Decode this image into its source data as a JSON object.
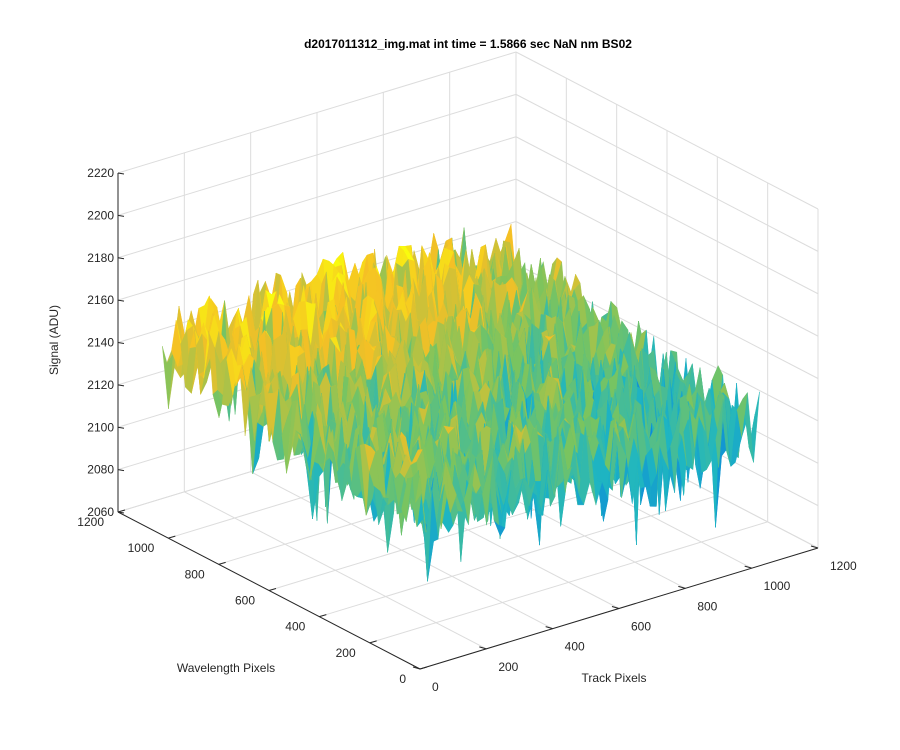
{
  "chart_data": {
    "type": "surface",
    "title": "d2017011312_img.mat int time = 1.5866 sec  NaN nm BS02",
    "xlabel": "Track Pixels",
    "ylabel": "Wavelength Pixels",
    "zlabel": "Signal (ADU)",
    "xlim": [
      0,
      1200
    ],
    "ylim": [
      0,
      1200
    ],
    "zlim": [
      2060,
      2220
    ],
    "xticks": [
      "0",
      "200",
      "400",
      "600",
      "800",
      "1000",
      "1200"
    ],
    "yticks": [
      "0",
      "200",
      "400",
      "600",
      "800",
      "1000",
      "1200"
    ],
    "zticks": [
      "2060",
      "2080",
      "2100",
      "2120",
      "2140",
      "2160",
      "2180",
      "2200",
      "2220"
    ],
    "data_extent": {
      "x": [
        0,
        1024
      ],
      "y": [
        0,
        1024
      ]
    },
    "typical_signal": {
      "mean": 2135,
      "min": 2065,
      "max": 2195
    },
    "grid": true,
    "box": false,
    "colormap": [
      "#3e26a8",
      "#0d8bd9",
      "#1fb6c1",
      "#79c460",
      "#f5c025",
      "#f9fb0e"
    ]
  }
}
